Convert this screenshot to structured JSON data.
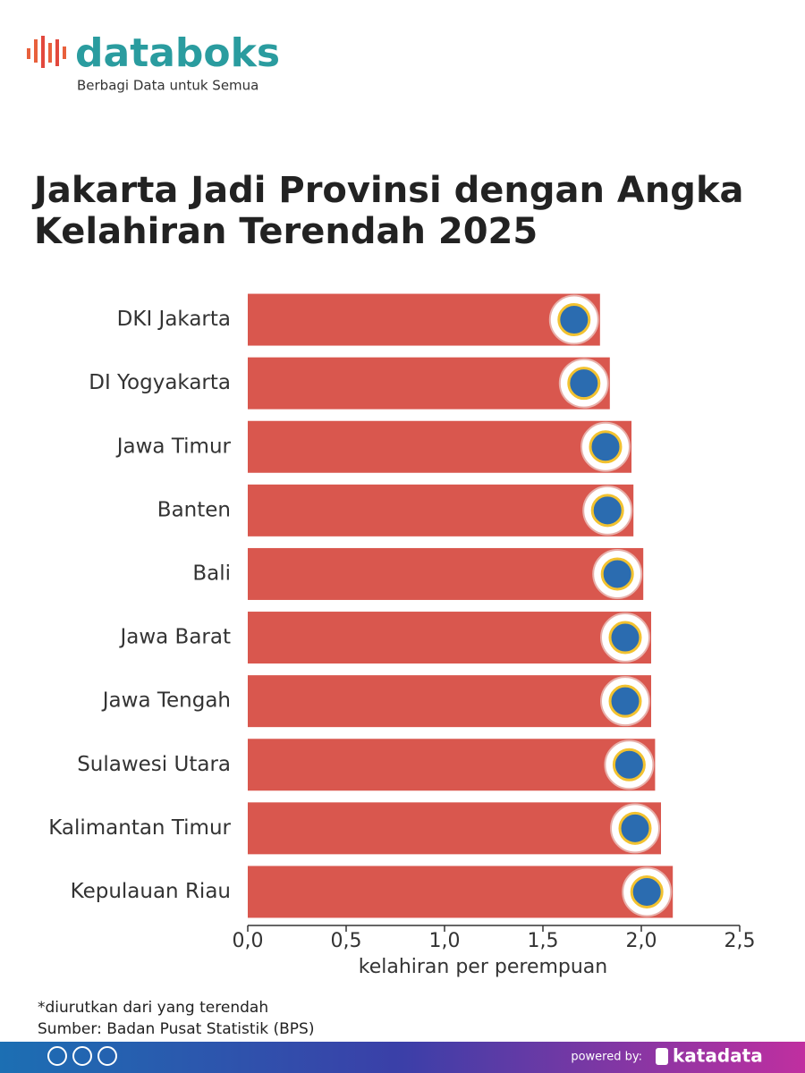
{
  "header": {
    "brand": "databoks",
    "tagline": "Berbagi Data untuk Semua"
  },
  "chart_data": {
    "type": "bar",
    "orientation": "horizontal",
    "title": "Jakarta Jadi Provinsi dengan Angka Kelahiran Terendah 2025",
    "categories": [
      "DKI Jakarta",
      "DI Yogyakarta",
      "Jawa Timur",
      "Banten",
      "Bali",
      "Jawa Barat",
      "Jawa Tengah",
      "Sulawesi Utara",
      "Kalimantan Timur",
      "Kepulauan Riau"
    ],
    "values": [
      1.79,
      1.84,
      1.95,
      1.96,
      2.01,
      2.05,
      2.05,
      2.07,
      2.1,
      2.16
    ],
    "color": "#d9574e",
    "xlim": [
      0,
      2.5
    ],
    "xticks": [
      {
        "value": 0,
        "label": "0,0"
      },
      {
        "value": 0.5,
        "label": "0,5"
      },
      {
        "value": 1,
        "label": "1,0"
      },
      {
        "value": 1.5,
        "label": "1,5"
      },
      {
        "value": 2,
        "label": "2,0"
      },
      {
        "value": 2.5,
        "label": "2,5"
      }
    ],
    "xlabel": "kelahiran per perempuan"
  },
  "notes": {
    "sort": "*diurutkan dari yang terendah",
    "source": "Sumber: Badan Pusat Statistik (BPS)"
  },
  "footer": {
    "powered_by": "powered by:",
    "brand": "katadata"
  }
}
